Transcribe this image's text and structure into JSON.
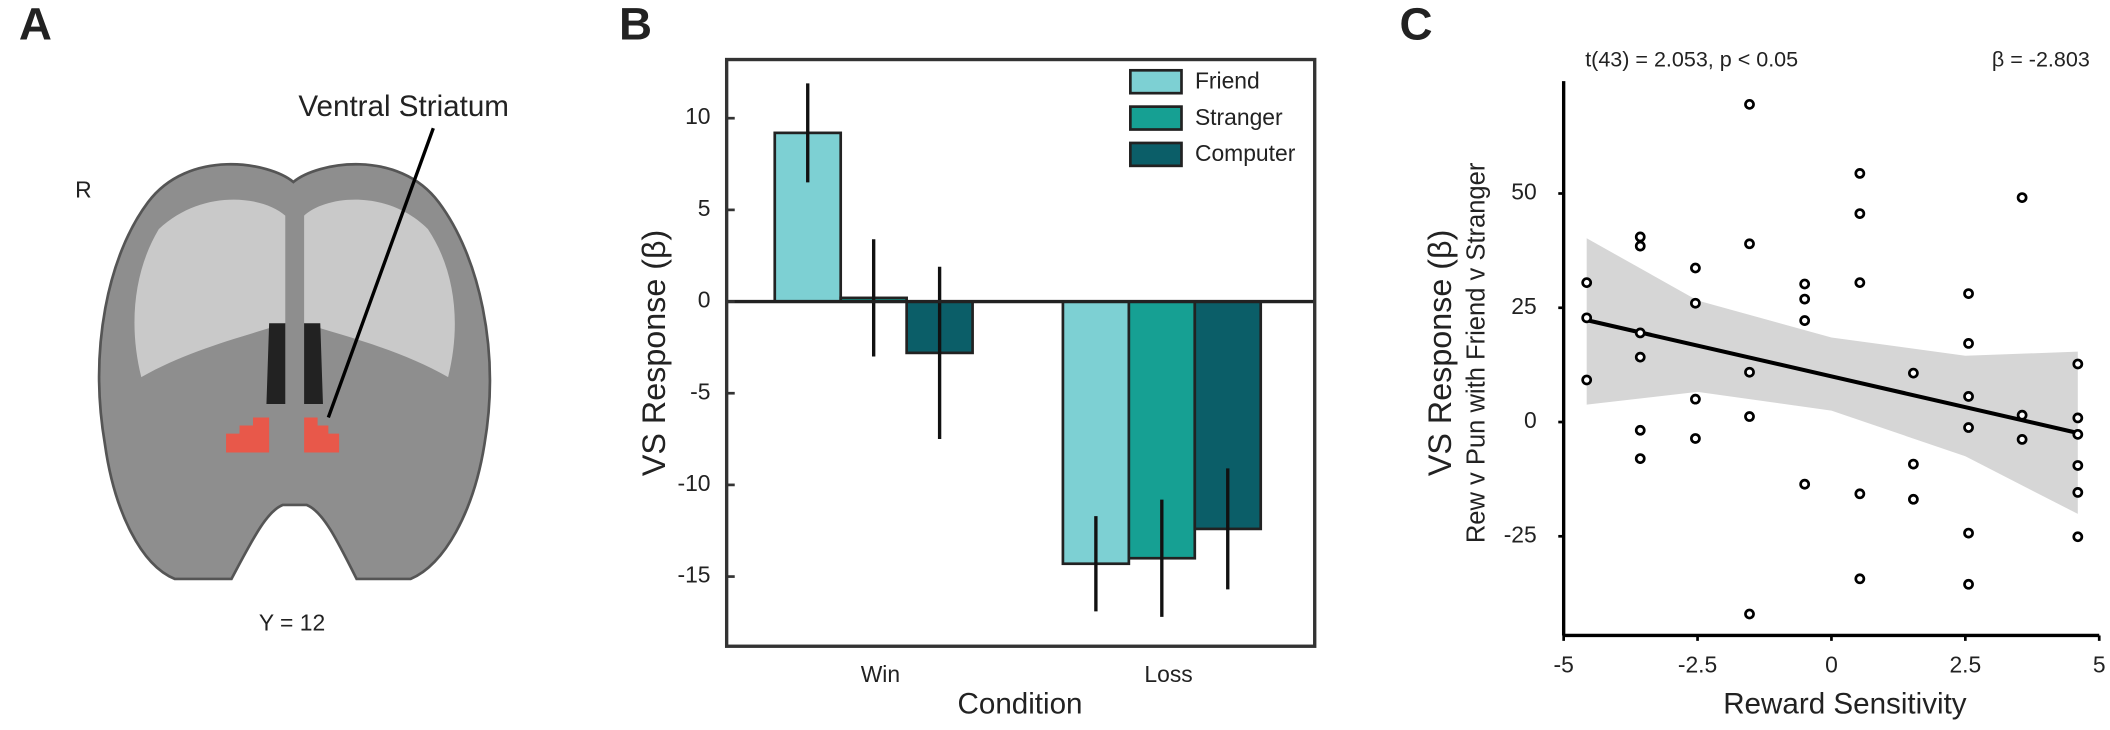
{
  "panel_a": {
    "label": "A",
    "annotation": "Ventral Striatum",
    "side_label": "R",
    "slice_label": "Y = 12"
  },
  "chart_data": [
    {
      "type": "bar",
      "panel_label": "B",
      "categories": [
        "Win",
        "Loss"
      ],
      "series": [
        {
          "name": "Friend",
          "color": "#7dd0d3",
          "values": [
            9.2,
            -14.3
          ],
          "errors": [
            2.7,
            2.6
          ]
        },
        {
          "name": "Stranger",
          "color": "#16a093",
          "values": [
            0.2,
            -14.0
          ],
          "errors": [
            3.2,
            3.2
          ]
        },
        {
          "name": "Computer",
          "color": "#0b5e68",
          "values": [
            -2.8,
            -12.4
          ],
          "errors": [
            4.7,
            3.3
          ]
        }
      ],
      "ylim": [
        -18.8,
        13.2
      ],
      "yticks": [
        -15,
        -10,
        -5,
        0,
        5,
        10
      ],
      "y_label": "VS Response (β)",
      "x_label": "Condition",
      "legend": "upper right"
    },
    {
      "type": "scatter",
      "panel_label": "C",
      "annotations": [
        "t(43) = 2.053, p < 0.05",
        "β = -2.803"
      ],
      "y_label": "VS Response (β)",
      "y_sublabel": "Rew v Pun with Friend v Stranger",
      "x_label": "Reward Sensitivity",
      "x": [
        -4.57,
        -4.57,
        -4.57,
        -3.57,
        -3.57,
        -3.57,
        -3.57,
        -3.57,
        -3.57,
        -2.54,
        -2.54,
        -2.54,
        -2.54,
        -1.53,
        -1.53,
        -1.53,
        -1.53,
        -1.53,
        -0.5,
        -0.5,
        -0.5,
        -0.5,
        0.53,
        0.53,
        0.53,
        0.53,
        0.53,
        1.53,
        1.53,
        1.53,
        2.56,
        2.56,
        2.56,
        2.56,
        2.56,
        2.56,
        3.56,
        3.56,
        3.56,
        4.6,
        4.6,
        4.6,
        4.6,
        4.6,
        4.6
      ],
      "y": [
        30.5,
        22.8,
        9.2,
        40.5,
        38.5,
        19.5,
        14.2,
        -1.8,
        -8.0,
        33.7,
        26.0,
        5.0,
        -3.6,
        69.5,
        39.0,
        10.9,
        1.2,
        -42.0,
        30.2,
        26.9,
        22.2,
        -13.6,
        54.4,
        45.6,
        30.5,
        -15.7,
        -34.3,
        10.7,
        -9.2,
        -16.9,
        28.1,
        17.2,
        5.6,
        -1.2,
        -24.3,
        -35.5,
        49.1,
        1.5,
        -3.8,
        12.7,
        0.9,
        -2.7,
        -9.5,
        -15.4,
        -25.1
      ],
      "fit": {
        "x": [
          -4.57,
          4.6
        ],
        "y": [
          22.3,
          -2.4
        ]
      },
      "band": {
        "x": [
          -4.57,
          -2.5,
          0,
          2.5,
          4.6
        ],
        "upper": [
          40.2,
          26.6,
          18.5,
          14.5,
          15.4
        ],
        "lower": [
          3.8,
          6.6,
          2.5,
          -7.5,
          -20.1
        ]
      },
      "xlim": [
        -5,
        5
      ],
      "xticks": [
        -5,
        -2.5,
        0,
        2.5,
        5
      ],
      "ylim": [
        -46.7,
        74.6
      ],
      "yticks": [
        -25,
        0,
        25,
        50
      ]
    }
  ]
}
